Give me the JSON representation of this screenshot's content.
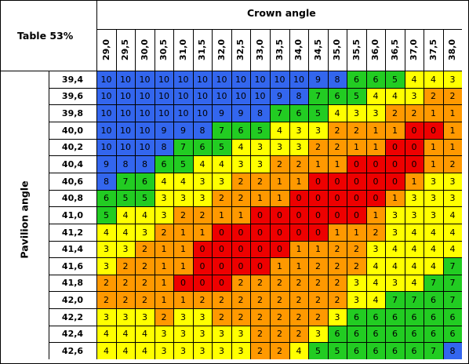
{
  "title": "Table 53%",
  "crown_label": "Crown angle",
  "pavilion_label": "Pavilion angle",
  "crown_angles": [
    "29,0",
    "29,5",
    "30,0",
    "30,5",
    "31,0",
    "31,5",
    "32,0",
    "32,5",
    "33,0",
    "33,5",
    "34,0",
    "34,5",
    "35,0",
    "35,5",
    "36,0",
    "36,5",
    "37,0",
    "37,5",
    "38,0"
  ],
  "pavilion_angles": [
    "39,4",
    "39,6",
    "39,8",
    "40,0",
    "40,2",
    "40,4",
    "40,6",
    "40,8",
    "41,0",
    "41,2",
    "41,4",
    "41,6",
    "41,8",
    "42,0",
    "42,2",
    "42,4",
    "42,6"
  ],
  "colors": {
    "10": "#3366ee",
    "9": "#3366ee",
    "8": "#3366ee",
    "7": "#22cc22",
    "6": "#22cc22",
    "5": "#22cc22",
    "4": "#ffff00",
    "3": "#ffff00",
    "2": "#ff9900",
    "1": "#ff9900",
    "0": "#ee0000"
  },
  "grid_values": [
    [
      10,
      10,
      10,
      10,
      10,
      10,
      10,
      10,
      10,
      10,
      10,
      9,
      8,
      6,
      6,
      5,
      4,
      4,
      3
    ],
    [
      10,
      10,
      10,
      10,
      10,
      10,
      10,
      10,
      10,
      9,
      8,
      7,
      6,
      5,
      4,
      4,
      3,
      2,
      2
    ],
    [
      10,
      10,
      10,
      10,
      10,
      10,
      9,
      9,
      8,
      7,
      6,
      5,
      4,
      3,
      3,
      2,
      2,
      1,
      1
    ],
    [
      10,
      10,
      10,
      9,
      9,
      8,
      7,
      6,
      5,
      4,
      3,
      3,
      2,
      2,
      1,
      1,
      0,
      0,
      1
    ],
    [
      10,
      10,
      10,
      8,
      7,
      6,
      5,
      4,
      3,
      3,
      3,
      2,
      2,
      1,
      1,
      0,
      0,
      1,
      1
    ],
    [
      9,
      8,
      8,
      6,
      5,
      4,
      4,
      3,
      3,
      2,
      2,
      1,
      1,
      0,
      0,
      0,
      0,
      1,
      2
    ],
    [
      8,
      7,
      6,
      4,
      4,
      3,
      3,
      2,
      2,
      1,
      1,
      0,
      0,
      0,
      0,
      0,
      1,
      3,
      3
    ],
    [
      6,
      5,
      5,
      3,
      3,
      3,
      2,
      2,
      1,
      1,
      0,
      0,
      0,
      0,
      0,
      1,
      3,
      3,
      3
    ],
    [
      5,
      4,
      4,
      3,
      2,
      2,
      1,
      1,
      0,
      0,
      0,
      0,
      0,
      0,
      1,
      3,
      3,
      3,
      4
    ],
    [
      4,
      4,
      3,
      2,
      1,
      1,
      0,
      0,
      0,
      0,
      0,
      0,
      1,
      1,
      2,
      3,
      4,
      4,
      4
    ],
    [
      3,
      3,
      2,
      1,
      1,
      0,
      0,
      0,
      0,
      0,
      1,
      1,
      2,
      2,
      3,
      4,
      4,
      4,
      4
    ],
    [
      3,
      2,
      2,
      1,
      1,
      0,
      0,
      0,
      0,
      1,
      1,
      2,
      2,
      2,
      4,
      4,
      4,
      4,
      7
    ],
    [
      2,
      2,
      2,
      1,
      0,
      0,
      0,
      2,
      2,
      2,
      2,
      2,
      2,
      3,
      4,
      3,
      4,
      7,
      7
    ],
    [
      2,
      2,
      2,
      1,
      1,
      2,
      2,
      2,
      2,
      2,
      2,
      2,
      2,
      3,
      4,
      7,
      7,
      6,
      7
    ],
    [
      3,
      3,
      3,
      2,
      3,
      3,
      2,
      2,
      2,
      2,
      2,
      2,
      3,
      6,
      6,
      6,
      6,
      6,
      6
    ],
    [
      4,
      4,
      4,
      3,
      3,
      3,
      3,
      3,
      2,
      2,
      2,
      3,
      6,
      6,
      6,
      6,
      6,
      6,
      6
    ],
    [
      4,
      4,
      4,
      3,
      3,
      3,
      3,
      3,
      2,
      2,
      4,
      5,
      5,
      6,
      6,
      6,
      6,
      7,
      8
    ]
  ]
}
